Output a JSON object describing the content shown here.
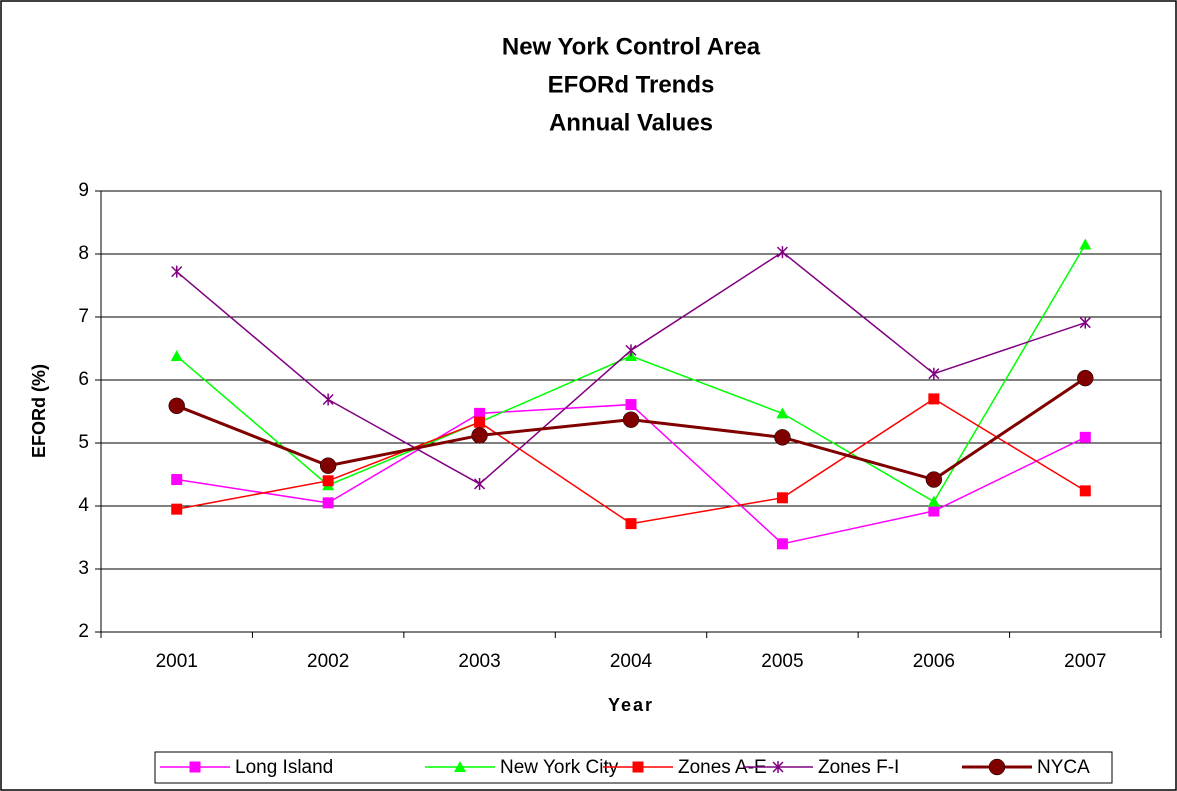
{
  "chart_data": {
    "type": "line",
    "title": [
      "New York Control Area",
      "EFORd Trends",
      "Annual Values"
    ],
    "x_label": "Year",
    "y_label": "EFORd (%)",
    "categories": [
      "2001",
      "2002",
      "2003",
      "2004",
      "2005",
      "2006",
      "2007"
    ],
    "series": [
      {
        "name": "Long Island",
        "color": "#ff00ff",
        "marker": "square",
        "values": [
          4.42,
          4.05,
          5.47,
          5.61,
          3.4,
          3.92,
          5.09
        ]
      },
      {
        "name": "New York City",
        "color": "#00ff00",
        "marker": "triangle",
        "values": [
          6.38,
          4.33,
          5.33,
          6.38,
          5.47,
          4.07,
          8.15
        ]
      },
      {
        "name": "Zones A-E",
        "color": "#ff0000",
        "marker": "square",
        "values": [
          3.95,
          4.4,
          5.33,
          3.72,
          4.13,
          5.7,
          4.24
        ]
      },
      {
        "name": "Zones F-I",
        "color": "#800080",
        "marker": "star",
        "values": [
          7.72,
          5.69,
          4.35,
          6.47,
          8.03,
          6.1,
          6.91
        ]
      },
      {
        "name": "NYCA",
        "color": "#800000",
        "marker": "circle",
        "values": [
          5.59,
          4.64,
          5.12,
          5.37,
          5.09,
          4.42,
          6.03
        ]
      }
    ],
    "ylim": [
      2,
      9
    ],
    "yticks": [
      2,
      3,
      4,
      5,
      6,
      7,
      8,
      9
    ],
    "grid": true,
    "legend": "bottom"
  }
}
